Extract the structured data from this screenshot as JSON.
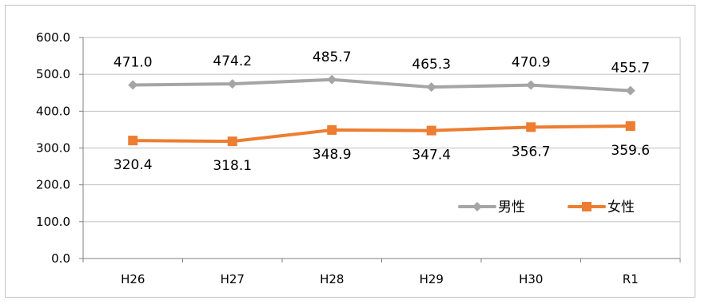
{
  "chart_data": {
    "type": "line",
    "categories": [
      "H26",
      "H27",
      "H28",
      "H29",
      "H30",
      "R1"
    ],
    "ylim": [
      0,
      600
    ],
    "yticks": [
      "0.0",
      "100.0",
      "200.0",
      "300.0",
      "400.0",
      "500.0",
      "600.0"
    ],
    "grid": true,
    "legend_position": "bottom-right",
    "series": [
      {
        "name": "男性",
        "color": "#a5a5a5",
        "marker": "diamond",
        "values": [
          471.0,
          474.2,
          485.7,
          465.3,
          470.9,
          455.7
        ],
        "labels": [
          "471.0",
          "474.2",
          "485.7",
          "465.3",
          "470.9",
          "455.7"
        ]
      },
      {
        "name": "女性",
        "color": "#ed7d31",
        "marker": "square",
        "values": [
          320.4,
          318.1,
          348.9,
          347.4,
          356.7,
          359.6
        ],
        "labels": [
          "320.4",
          "318.1",
          "348.9",
          "347.4",
          "356.7",
          "359.6"
        ]
      }
    ]
  }
}
